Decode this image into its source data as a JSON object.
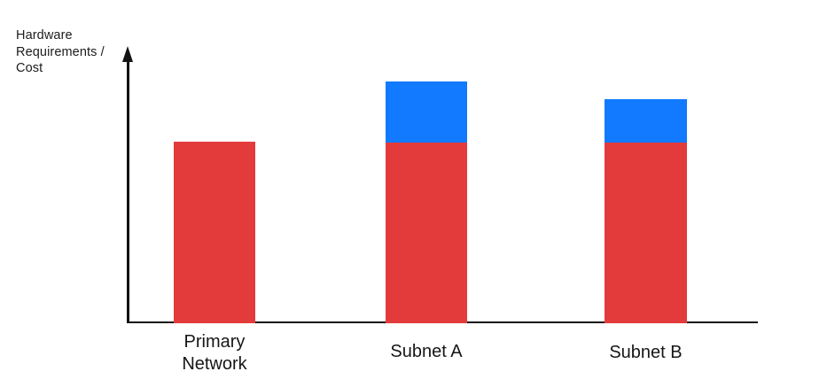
{
  "chart_data": {
    "type": "bar",
    "stacked": true,
    "title": "",
    "xlabel": "",
    "ylabel": "Hardware Requirements / Cost",
    "ylabel_lines": [
      "Hardware",
      "Requirements /",
      "Cost"
    ],
    "categories": [
      "Primary Network",
      "Subnet A",
      "Subnet B"
    ],
    "series": [
      {
        "name": "red-segment",
        "color": "#E33B3B",
        "values": [
          205,
          204,
          204
        ]
      },
      {
        "name": "blue-segment",
        "color": "#117AFF",
        "values": [
          0,
          69,
          49
        ]
      }
    ],
    "value_units": "relative",
    "yticks": [],
    "xticks_shown": false,
    "grid": false,
    "legend": "none",
    "axis_color": "#131313",
    "background_color": "#ffffff",
    "y_axis_has_arrowhead": true
  }
}
